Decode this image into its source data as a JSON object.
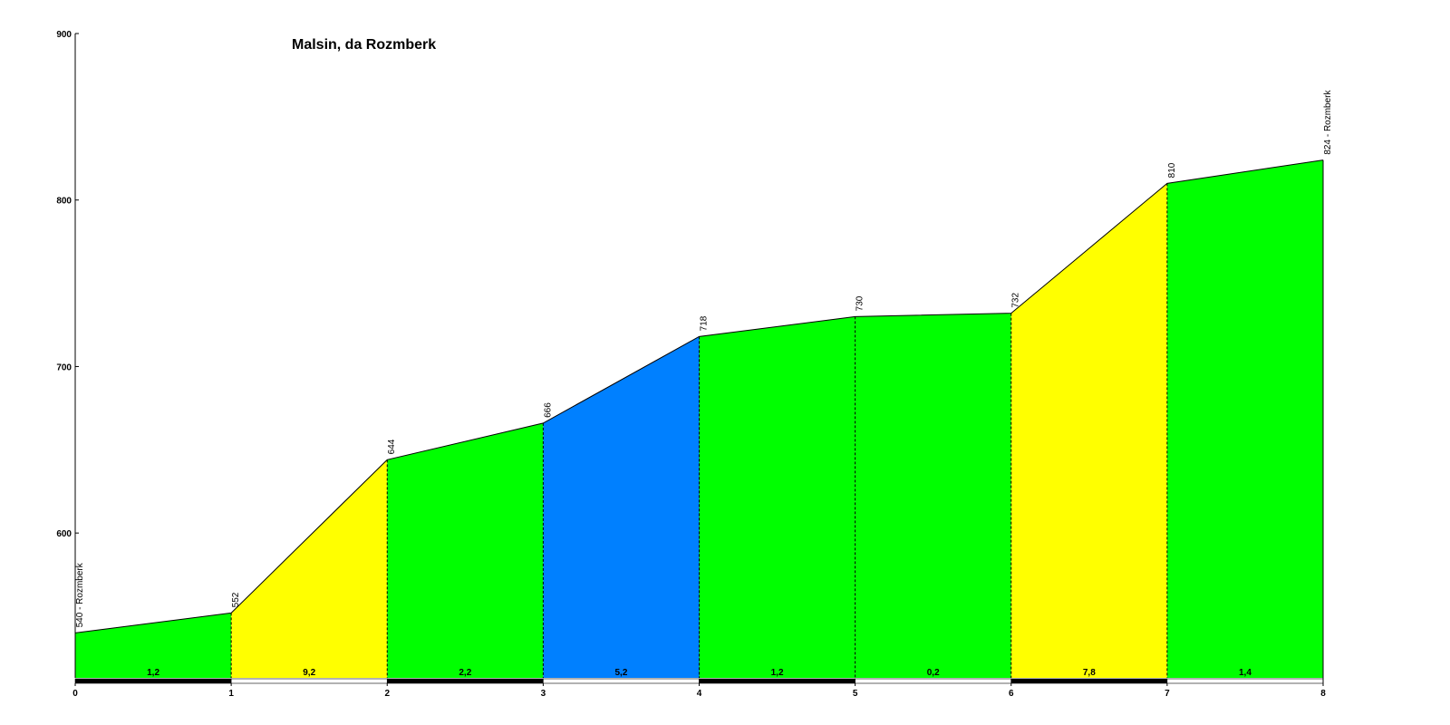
{
  "chart_data": {
    "type": "area",
    "title": "Malsin, da Rozmberk",
    "xlabel": "",
    "ylabel": "",
    "xlim": [
      0,
      8
    ],
    "ylim": [
      513,
      900
    ],
    "x_ticks": [
      "0",
      "1",
      "2",
      "3",
      "4",
      "5",
      "6",
      "7",
      "8"
    ],
    "y_ticks": [
      "600",
      "700",
      "800",
      "900"
    ],
    "x": [
      0,
      1,
      2,
      3,
      4,
      5,
      6,
      7,
      8
    ],
    "elevations": [
      540,
      552,
      644,
      666,
      718,
      730,
      732,
      810,
      824
    ],
    "point_labels": [
      "540 - Rozmberk",
      "552",
      "644",
      "666",
      "718",
      "730",
      "732",
      "810",
      "824 - Rozmberk"
    ],
    "segments": [
      {
        "grade": "1,2",
        "color": "#00ff00"
      },
      {
        "grade": "9,2",
        "color": "#ffff00"
      },
      {
        "grade": "2,2",
        "color": "#00ff00"
      },
      {
        "grade": "5,2",
        "color": "#0080ff"
      },
      {
        "grade": "1,2",
        "color": "#00ff00"
      },
      {
        "grade": "0,2",
        "color": "#00ff00"
      },
      {
        "grade": "7,8",
        "color": "#ffff00"
      },
      {
        "grade": "1,4",
        "color": "#00ff00"
      }
    ],
    "grid": false,
    "legend": "none"
  }
}
